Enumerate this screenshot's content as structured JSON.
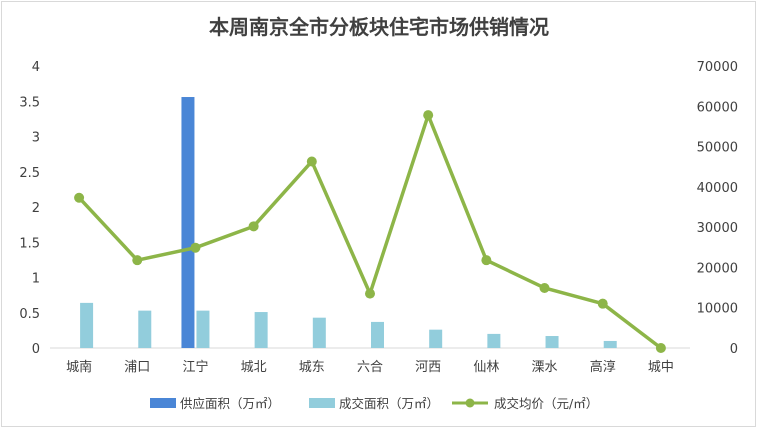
{
  "chart_data": {
    "type": "bar",
    "title": "本周南京全市分板块住宅市场供销情况",
    "categories": [
      "城南",
      "浦口",
      "江宁",
      "城北",
      "城东",
      "六合",
      "河西",
      "仙林",
      "溧水",
      "高淳",
      "城中"
    ],
    "series": [
      {
        "name": "供应面积（万㎡）",
        "type": "bar",
        "axis": "left",
        "color": "#4a86d6",
        "values": [
          0,
          0,
          3.56,
          0,
          0,
          0,
          0,
          0,
          0,
          0,
          0
        ]
      },
      {
        "name": "成交面积（万㎡）",
        "type": "bar",
        "axis": "left",
        "color": "#92cddc",
        "values": [
          0.64,
          0.53,
          0.53,
          0.51,
          0.43,
          0.37,
          0.26,
          0.2,
          0.17,
          0.1,
          0
        ]
      },
      {
        "name": "成交均价（元/㎡）",
        "type": "line",
        "axis": "right",
        "color": "#8db548",
        "values": [
          37300,
          21800,
          24900,
          30200,
          46300,
          13500,
          57800,
          21800,
          14900,
          11000,
          0
        ]
      }
    ],
    "y_left": {
      "min": 0,
      "max": 4,
      "ticks": [
        "0",
        "0.5",
        "1",
        "1.5",
        "2",
        "2.5",
        "3",
        "3.5",
        "4"
      ]
    },
    "y_right": {
      "min": 0,
      "max": 70000,
      "ticks": [
        "0",
        "10000",
        "20000",
        "30000",
        "40000",
        "50000",
        "60000",
        "70000"
      ]
    },
    "grid": false,
    "legend_position": "bottom"
  }
}
